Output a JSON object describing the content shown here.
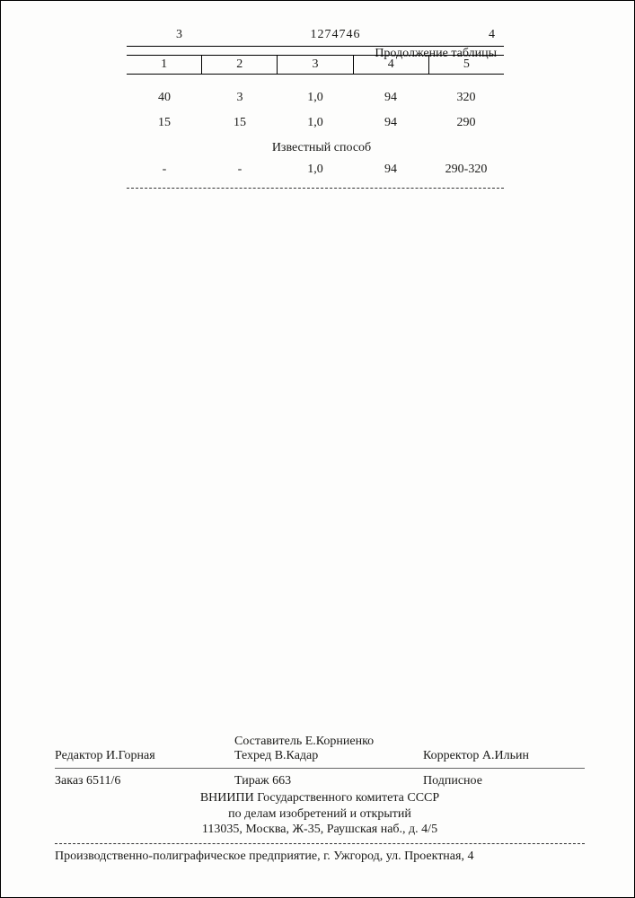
{
  "header": {
    "page_left": "3",
    "doc_number": "1274746",
    "page_right": "4",
    "continuation": "Продолжение таблицы"
  },
  "table": {
    "columns": [
      "1",
      "2",
      "3",
      "4",
      "5"
    ],
    "rows": [
      [
        "40",
        "3",
        "1,0",
        "94",
        "320"
      ],
      [
        "15",
        "15",
        "1,0",
        "94",
        "290"
      ]
    ],
    "section_title": "Известный способ",
    "section_row": [
      "-",
      "-",
      "1,0",
      "94",
      "290-320"
    ]
  },
  "credits": {
    "compiler": "Составитель Е.Корниенко",
    "editor": "Редактор И.Горная",
    "tech_editor": "Техред В.Кадар",
    "corrector": "Корректор А.Ильин",
    "order": "Заказ 6511/6",
    "tirazh": "Тираж 663",
    "subscription": "Подписное",
    "org_line1": "ВНИИПИ Государственного комитета СССР",
    "org_line2": "по делам изобретений и открытий",
    "org_line3": "113035, Москва, Ж-35, Раушская наб., д. 4/5",
    "print_line": "Производственно-полиграфическое предприятие, г. Ужгород, ул. Проектная, 4"
  }
}
